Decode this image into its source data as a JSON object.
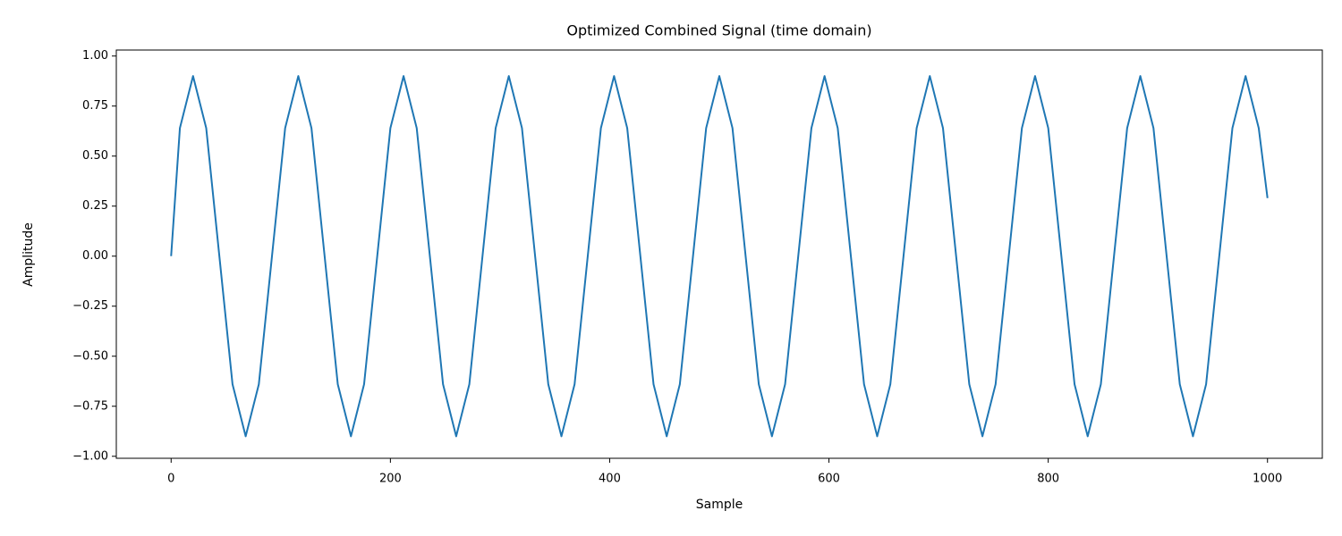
{
  "chart_data": {
    "type": "line",
    "title": "Optimized Combined Signal (time domain)",
    "x_label": "Sample",
    "y_label": "Amplitude",
    "x": [
      0,
      8,
      20,
      32,
      44,
      56,
      68,
      80,
      92,
      104,
      116,
      128,
      140,
      152,
      164,
      176,
      188,
      200,
      212,
      224,
      236,
      248,
      260,
      272,
      284,
      296,
      308,
      320,
      332,
      344,
      356,
      368,
      380,
      392,
      404,
      416,
      428,
      440,
      452,
      464,
      476,
      488,
      500,
      512,
      524,
      536,
      548,
      560,
      572,
      584,
      596,
      608,
      620,
      632,
      644,
      656,
      668,
      680,
      692,
      704,
      716,
      728,
      740,
      752,
      764,
      776,
      788,
      800,
      812,
      824,
      836,
      848,
      860,
      872,
      884,
      896,
      908,
      920,
      932,
      944,
      956,
      968,
      980,
      992,
      1000
    ],
    "series": [
      {
        "color": "#1f77b4",
        "values": [
          0,
          0.64,
          0.9,
          0.64,
          0,
          -0.64,
          -0.9,
          -0.64,
          0,
          0.64,
          0.9,
          0.64,
          0,
          -0.64,
          -0.9,
          -0.64,
          0,
          0.64,
          0.9,
          0.64,
          0,
          -0.64,
          -0.9,
          -0.64,
          0,
          0.64,
          0.9,
          0.64,
          0,
          -0.64,
          -0.9,
          -0.64,
          0,
          0.64,
          0.9,
          0.64,
          0,
          -0.64,
          -0.9,
          -0.64,
          0,
          0.64,
          0.9,
          0.64,
          0,
          -0.64,
          -0.9,
          -0.64,
          0,
          0.64,
          0.9,
          0.64,
          0,
          -0.64,
          -0.9,
          -0.64,
          0,
          0.64,
          0.9,
          0.64,
          0,
          -0.64,
          -0.9,
          -0.64,
          0,
          0.64,
          0.9,
          0.64,
          0,
          -0.64,
          -0.9,
          -0.64,
          0,
          0.64,
          0.9,
          0.64,
          0,
          -0.64,
          -0.9,
          -0.64,
          0,
          0.64,
          0.9,
          0.64,
          0.29
        ]
      }
    ],
    "xlim": [
      -50,
      1050
    ],
    "ylim": [
      -1.01,
      1.03
    ],
    "xticks": [
      0,
      200,
      400,
      600,
      800,
      1000
    ],
    "yticks": [
      {
        "value": -1,
        "label": "−1.00"
      },
      {
        "value": -0.75,
        "label": "−0.75"
      },
      {
        "value": -0.5,
        "label": "−0.50"
      },
      {
        "value": -0.25,
        "label": "−0.25"
      },
      {
        "value": 0,
        "label": "0.00"
      },
      {
        "value": 0.25,
        "label": "0.25"
      },
      {
        "value": 0.5,
        "label": "0.50"
      },
      {
        "value": 0.75,
        "label": "0.75"
      },
      {
        "value": 1,
        "label": "1.00"
      }
    ]
  }
}
